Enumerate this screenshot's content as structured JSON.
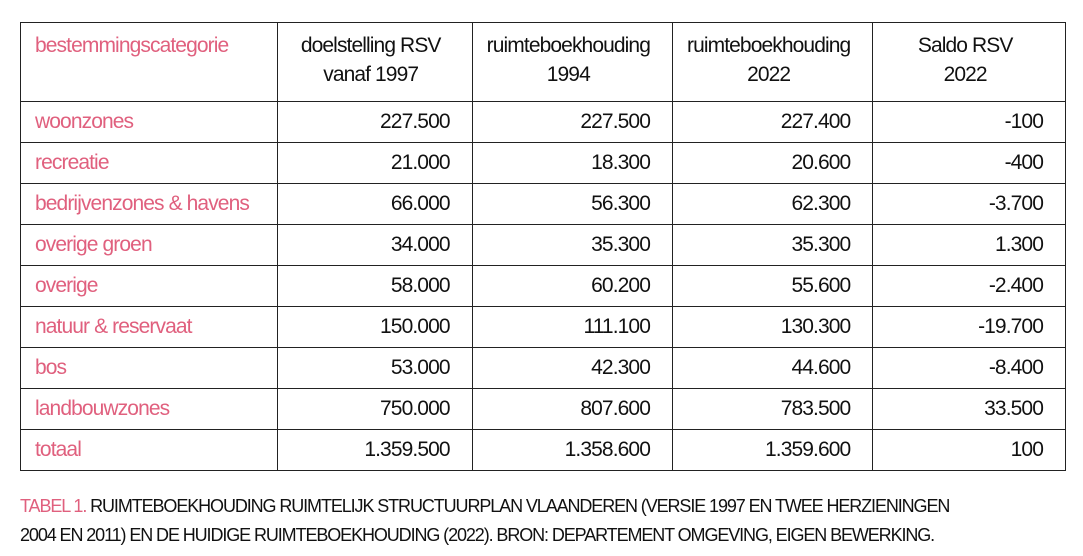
{
  "accent_color": "#e0607e",
  "table": {
    "headers": [
      [
        "bestemmingscategorie"
      ],
      [
        "doelstelling RSV",
        "vanaf 1997"
      ],
      [
        "ruimteboekhouding",
        "1994"
      ],
      [
        "ruimteboekhouding",
        "2022"
      ],
      [
        "Saldo RSV",
        "2022"
      ]
    ],
    "rows": [
      [
        "woonzones",
        "227.500",
        "227.500",
        "227.400",
        "-100"
      ],
      [
        "recreatie",
        "21.000",
        "18.300",
        "20.600",
        "-400"
      ],
      [
        "bedrijvenzones & havens",
        "66.000",
        "56.300",
        "62.300",
        "-3.700"
      ],
      [
        "overige groen",
        "34.000",
        "35.300",
        "35.300",
        "1.300"
      ],
      [
        "overige",
        "58.000",
        "60.200",
        "55.600",
        "-2.400"
      ],
      [
        "natuur & reservaat",
        "150.000",
        "111.100",
        "130.300",
        "-19.700"
      ],
      [
        "bos",
        "53.000",
        "42.300",
        "44.600",
        "-8.400"
      ],
      [
        "landbouwzones",
        "750.000",
        "807.600",
        "783.500",
        "33.500"
      ],
      [
        "totaal",
        "1.359.500",
        "1.358.600",
        "1.359.600",
        "100"
      ]
    ]
  },
  "caption": {
    "label": "TABEL 1.",
    "line1": " RUIMTEBOEKHOUDING RUIMTELIJK STRUCTUURPLAN VLAANDEREN (VERSIE 1997 EN TWEE HERZIENINGEN",
    "line2": "2004 EN 2011) EN DE HUIDIGE RUIMTEBOEKHOUDING (2022). BRON: DEPARTEMENT OMGEVING, EIGEN BEWERKING."
  }
}
